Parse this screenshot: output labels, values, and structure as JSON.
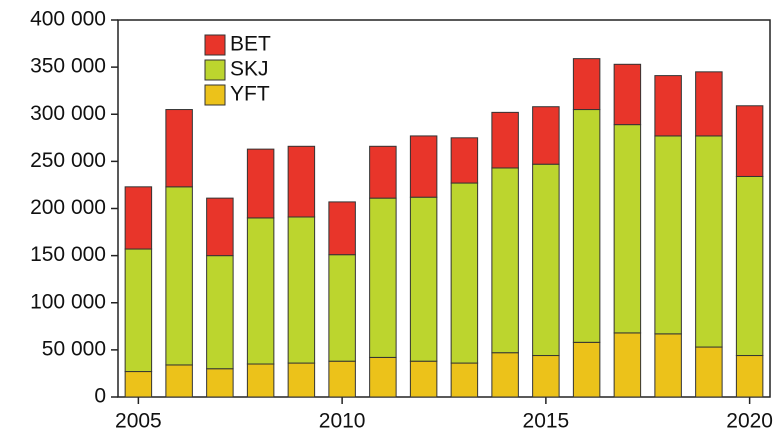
{
  "chart_data": {
    "type": "stacked_bar",
    "x": [
      2005,
      2006,
      2007,
      2008,
      2009,
      2010,
      2011,
      2012,
      2013,
      2014,
      2015,
      2016,
      2017,
      2018,
      2019,
      2020
    ],
    "series": [
      {
        "name": "YFT",
        "color": "#ecc21a",
        "values": [
          27000,
          34000,
          30000,
          35000,
          36000,
          38000,
          42000,
          38000,
          36000,
          47000,
          44000,
          58000,
          68000,
          67000,
          53000,
          44000
        ]
      },
      {
        "name": "SKJ",
        "color": "#bcd52e",
        "values": [
          130000,
          189000,
          120000,
          155000,
          155000,
          113000,
          169000,
          174000,
          191000,
          196000,
          203000,
          247000,
          221000,
          210000,
          224000,
          190000
        ]
      },
      {
        "name": "BET",
        "color": "#e8352a",
        "values": [
          66000,
          82000,
          61000,
          73000,
          75000,
          56000,
          55000,
          65000,
          48000,
          59000,
          61000,
          54000,
          64000,
          64000,
          68000,
          75000
        ]
      }
    ],
    "xlim": [
      2004.5,
      2020.5
    ],
    "xticks": [
      2005,
      2010,
      2015,
      2020
    ],
    "ylim": [
      0,
      400000
    ],
    "yticks": [
      0,
      {
        "value": 50000,
        "label": "50 000"
      },
      {
        "value": 100000,
        "label": "100 000"
      },
      {
        "value": 150000,
        "label": "150 000"
      },
      {
        "value": 200000,
        "label": "200 000"
      },
      {
        "value": 250000,
        "label": "250 000"
      },
      {
        "value": 300000,
        "label": "300 000"
      },
      {
        "value": 350000,
        "label": "350 000"
      },
      {
        "value": 400000,
        "label": "400 000"
      }
    ],
    "legend": "upper-left"
  }
}
